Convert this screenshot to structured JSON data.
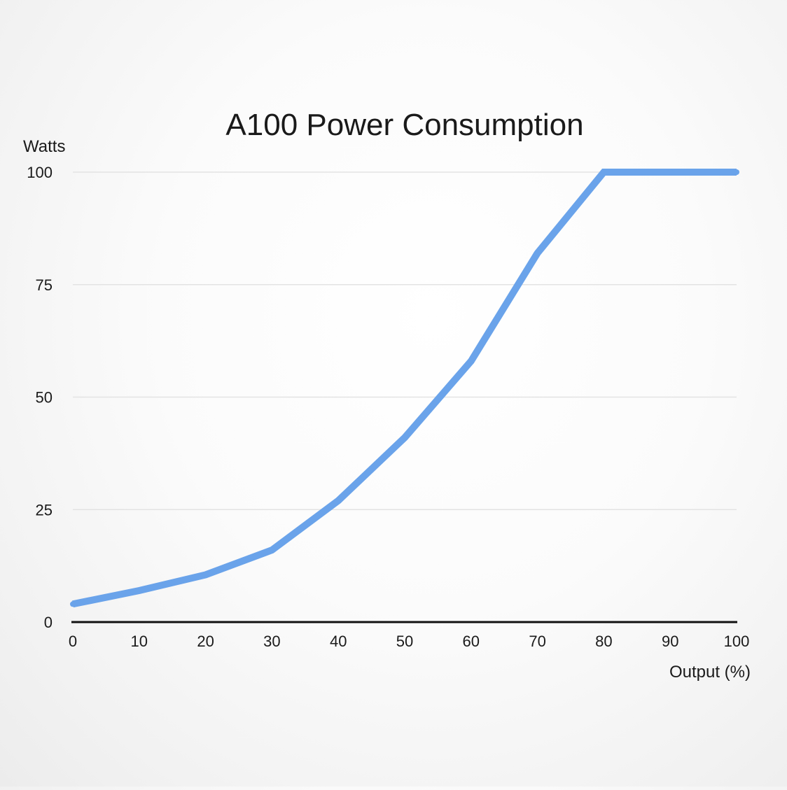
{
  "chart_data": {
    "type": "line",
    "title": "A100 Power Consumption",
    "xlabel": "Output (%)",
    "ylabel": "Watts",
    "xlim": [
      0,
      100
    ],
    "ylim": [
      0,
      100
    ],
    "x_ticks": [
      "0",
      "10",
      "20",
      "30",
      "40",
      "50",
      "60",
      "70",
      "80",
      "90",
      "100"
    ],
    "y_ticks": [
      "0",
      "25",
      "50",
      "75",
      "100"
    ],
    "grid": true,
    "legend": "none",
    "series": [
      {
        "color": "#6aa3ea",
        "x": [
          0,
          10,
          20,
          30,
          40,
          50,
          60,
          70,
          80,
          90,
          100
        ],
        "y": [
          4,
          7,
          10.5,
          16,
          27,
          41,
          58,
          82,
          100,
          100,
          100
        ]
      }
    ]
  }
}
